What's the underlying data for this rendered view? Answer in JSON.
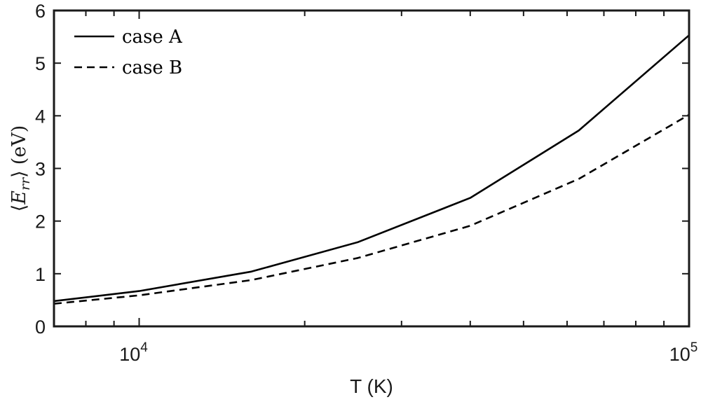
{
  "chart_data": {
    "type": "line",
    "xscale": "log",
    "xlim": [
      7000,
      100000
    ],
    "ylim": [
      0,
      6
    ],
    "xlabel": "T (K)",
    "ylabel": {
      "open": "⟨",
      "E": "E",
      "sub": "rr",
      "close": "⟩",
      "unit": "(eV)"
    },
    "x_ticks": [
      {
        "value": 10000,
        "base": "10",
        "exp": "4"
      },
      {
        "value": 100000,
        "base": "10",
        "exp": "5"
      }
    ],
    "y_ticks": [
      {
        "value": 0,
        "label": "0"
      },
      {
        "value": 1,
        "label": "1"
      },
      {
        "value": 2,
        "label": "2"
      },
      {
        "value": 3,
        "label": "3"
      },
      {
        "value": 4,
        "label": "4"
      },
      {
        "value": 5,
        "label": "5"
      },
      {
        "value": 6,
        "label": "6"
      }
    ],
    "minor_x_ticks": [
      7000,
      8000,
      9000,
      20000,
      30000,
      40000,
      50000,
      60000,
      70000,
      80000,
      90000
    ],
    "legend_position": "top-left",
    "grid": false,
    "series": [
      {
        "name": "case A",
        "line_style": "solid",
        "color": "#000000",
        "x": [
          7000,
          10000,
          16000,
          25000,
          40000,
          63000,
          100000
        ],
        "y": [
          0.48,
          0.67,
          1.04,
          1.6,
          2.44,
          3.72,
          5.53
        ]
      },
      {
        "name": "case B",
        "line_style": "dashed",
        "color": "#000000",
        "x": [
          7000,
          10000,
          16000,
          25000,
          40000,
          63000,
          100000
        ],
        "y": [
          0.43,
          0.59,
          0.88,
          1.3,
          1.91,
          2.8,
          4.02
        ]
      }
    ]
  }
}
